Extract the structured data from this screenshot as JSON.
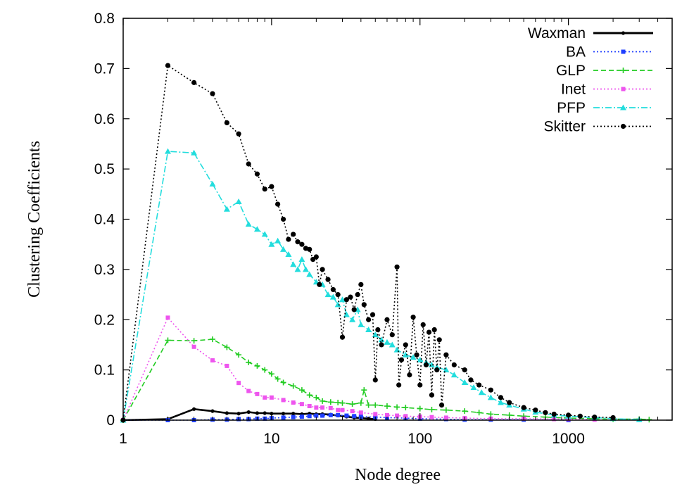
{
  "chart_data": {
    "type": "line",
    "xlabel": "Node degree",
    "ylabel": "Clustering Coefficients",
    "xscale": "log",
    "xlim": [
      1,
      5000
    ],
    "ylim": [
      0,
      0.8
    ],
    "x_ticks": [
      1,
      10,
      100,
      1000
    ],
    "x_tick_labels": [
      "1",
      "10",
      "100",
      "1000"
    ],
    "y_ticks": [
      0,
      0.1,
      0.2,
      0.3,
      0.4,
      0.5,
      0.6,
      0.7,
      0.8
    ],
    "y_tick_labels": [
      "0",
      "0.1",
      "0.2",
      "0.3",
      "0.4",
      "0.5",
      "0.6",
      "0.7",
      "0.8"
    ],
    "grid": false,
    "legend_position": "top-right",
    "series": [
      {
        "name": "Waxman",
        "color": "#000000",
        "dash": "solid",
        "marker": "dot",
        "points": [
          [
            1,
            0
          ],
          [
            2,
            0.002
          ],
          [
            3,
            0.022
          ],
          [
            4,
            0.018
          ],
          [
            5,
            0.014
          ],
          [
            6,
            0.013
          ],
          [
            7,
            0.016
          ],
          [
            8,
            0.014
          ],
          [
            9,
            0.014
          ],
          [
            10,
            0.013
          ],
          [
            12,
            0.013
          ],
          [
            14,
            0.013
          ],
          [
            16,
            0.012
          ],
          [
            18,
            0.013
          ],
          [
            20,
            0.012
          ],
          [
            22,
            0.012
          ],
          [
            25,
            0.011
          ],
          [
            28,
            0.009
          ],
          [
            32,
            0.007
          ],
          [
            36,
            0.005
          ],
          [
            40,
            0.004
          ],
          [
            45,
            0.003
          ],
          [
            50,
            0.002
          ]
        ]
      },
      {
        "name": "BA",
        "color": "#1f3fff",
        "dash": "dotted",
        "marker": "square",
        "points": [
          [
            1,
            0
          ],
          [
            2,
            0
          ],
          [
            3,
            0
          ],
          [
            4,
            0.001
          ],
          [
            5,
            0.001
          ],
          [
            6,
            0.002
          ],
          [
            7,
            0.002
          ],
          [
            8,
            0.003
          ],
          [
            9,
            0.003
          ],
          [
            10,
            0.004
          ],
          [
            12,
            0.005
          ],
          [
            14,
            0.006
          ],
          [
            16,
            0.007
          ],
          [
            18,
            0.008
          ],
          [
            20,
            0.009
          ],
          [
            22,
            0.009
          ],
          [
            25,
            0.01
          ],
          [
            28,
            0.01
          ],
          [
            32,
            0.009
          ],
          [
            36,
            0.008
          ],
          [
            40,
            0.007
          ],
          [
            50,
            0.006
          ],
          [
            60,
            0.005
          ],
          [
            80,
            0.004
          ],
          [
            100,
            0.003
          ],
          [
            150,
            0.002
          ],
          [
            200,
            0.001
          ],
          [
            300,
            0.001
          ],
          [
            500,
            0.001
          ],
          [
            1000,
            0.0
          ]
        ]
      },
      {
        "name": "GLP",
        "color": "#22cc22",
        "dash": "dashed",
        "marker": "plus",
        "points": [
          [
            1,
            0
          ],
          [
            2,
            0.159
          ],
          [
            3,
            0.158
          ],
          [
            4,
            0.161
          ],
          [
            5,
            0.145
          ],
          [
            6,
            0.13
          ],
          [
            7,
            0.115
          ],
          [
            8,
            0.108
          ],
          [
            9,
            0.1
          ],
          [
            10,
            0.092
          ],
          [
            11,
            0.082
          ],
          [
            12,
            0.075
          ],
          [
            14,
            0.068
          ],
          [
            16,
            0.06
          ],
          [
            18,
            0.05
          ],
          [
            20,
            0.045
          ],
          [
            22,
            0.038
          ],
          [
            25,
            0.036
          ],
          [
            28,
            0.035
          ],
          [
            30,
            0.034
          ],
          [
            35,
            0.032
          ],
          [
            40,
            0.034
          ],
          [
            42,
            0.06
          ],
          [
            45,
            0.03
          ],
          [
            50,
            0.03
          ],
          [
            60,
            0.028
          ],
          [
            70,
            0.026
          ],
          [
            80,
            0.025
          ],
          [
            100,
            0.023
          ],
          [
            120,
            0.021
          ],
          [
            150,
            0.02
          ],
          [
            200,
            0.018
          ],
          [
            250,
            0.015
          ],
          [
            300,
            0.012
          ],
          [
            400,
            0.01
          ],
          [
            500,
            0.008
          ],
          [
            700,
            0.006
          ],
          [
            1000,
            0.004
          ],
          [
            1500,
            0.003
          ],
          [
            2000,
            0.002
          ],
          [
            3000,
            0.002
          ],
          [
            3500,
            0.001
          ]
        ]
      },
      {
        "name": "Inet",
        "color": "#ee55ee",
        "dash": "dotted",
        "marker": "square",
        "points": [
          [
            1,
            0
          ],
          [
            2,
            0.204
          ],
          [
            3,
            0.146
          ],
          [
            4,
            0.119
          ],
          [
            5,
            0.108
          ],
          [
            6,
            0.074
          ],
          [
            7,
            0.058
          ],
          [
            8,
            0.052
          ],
          [
            9,
            0.045
          ],
          [
            10,
            0.045
          ],
          [
            12,
            0.04
          ],
          [
            14,
            0.035
          ],
          [
            16,
            0.032
          ],
          [
            18,
            0.028
          ],
          [
            20,
            0.025
          ],
          [
            22,
            0.025
          ],
          [
            25,
            0.024
          ],
          [
            28,
            0.02
          ],
          [
            30,
            0.02
          ],
          [
            35,
            0.018
          ],
          [
            40,
            0.015
          ],
          [
            50,
            0.012
          ],
          [
            60,
            0.01
          ],
          [
            70,
            0.009
          ],
          [
            80,
            0.008
          ],
          [
            100,
            0.007
          ],
          [
            120,
            0.006
          ],
          [
            150,
            0.005
          ],
          [
            200,
            0.004
          ],
          [
            300,
            0.003
          ],
          [
            500,
            0.003
          ],
          [
            800,
            0.002
          ],
          [
            1000,
            0.002
          ],
          [
            1500,
            0.001
          ]
        ]
      },
      {
        "name": "PFP",
        "color": "#22dddd",
        "dash": "dashdot",
        "marker": "triangle",
        "points": [
          [
            1,
            0
          ],
          [
            2,
            0.535
          ],
          [
            3,
            0.532
          ],
          [
            4,
            0.47
          ],
          [
            5,
            0.42
          ],
          [
            6,
            0.435
          ],
          [
            7,
            0.39
          ],
          [
            8,
            0.38
          ],
          [
            9,
            0.37
          ],
          [
            10,
            0.35
          ],
          [
            11,
            0.357
          ],
          [
            12,
            0.34
          ],
          [
            13,
            0.33
          ],
          [
            14,
            0.31
          ],
          [
            15,
            0.3
          ],
          [
            16,
            0.32
          ],
          [
            17,
            0.3
          ],
          [
            18,
            0.29
          ],
          [
            20,
            0.275
          ],
          [
            22,
            0.27
          ],
          [
            24,
            0.25
          ],
          [
            26,
            0.245
          ],
          [
            28,
            0.23
          ],
          [
            30,
            0.24
          ],
          [
            32,
            0.21
          ],
          [
            35,
            0.2
          ],
          [
            38,
            0.22
          ],
          [
            40,
            0.19
          ],
          [
            45,
            0.18
          ],
          [
            50,
            0.17
          ],
          [
            55,
            0.16
          ],
          [
            60,
            0.155
          ],
          [
            65,
            0.15
          ],
          [
            70,
            0.14
          ],
          [
            80,
            0.13
          ],
          [
            90,
            0.125
          ],
          [
            100,
            0.12
          ],
          [
            110,
            0.115
          ],
          [
            120,
            0.11
          ],
          [
            130,
            0.105
          ],
          [
            150,
            0.1
          ],
          [
            170,
            0.09
          ],
          [
            200,
            0.075
          ],
          [
            230,
            0.065
          ],
          [
            260,
            0.055
          ],
          [
            300,
            0.045
          ],
          [
            350,
            0.035
          ],
          [
            400,
            0.03
          ],
          [
            500,
            0.022
          ],
          [
            600,
            0.016
          ],
          [
            800,
            0.01
          ],
          [
            1000,
            0.008
          ],
          [
            1500,
            0.005
          ],
          [
            2000,
            0.003
          ],
          [
            3000,
            0.001
          ]
        ]
      },
      {
        "name": "Skitter",
        "color": "#000000",
        "dash": "dotted",
        "marker": "circle",
        "points": [
          [
            1,
            0
          ],
          [
            2,
            0.706
          ],
          [
            3,
            0.672
          ],
          [
            4,
            0.65
          ],
          [
            5,
            0.592
          ],
          [
            6,
            0.57
          ],
          [
            7,
            0.51
          ],
          [
            8,
            0.49
          ],
          [
            9,
            0.46
          ],
          [
            10,
            0.465
          ],
          [
            11,
            0.43
          ],
          [
            12,
            0.4
          ],
          [
            13,
            0.36
          ],
          [
            14,
            0.37
          ],
          [
            15,
            0.355
          ],
          [
            16,
            0.35
          ],
          [
            17,
            0.342
          ],
          [
            18,
            0.34
          ],
          [
            19,
            0.32
          ],
          [
            20,
            0.325
          ],
          [
            21,
            0.27
          ],
          [
            22,
            0.3
          ],
          [
            24,
            0.28
          ],
          [
            26,
            0.26
          ],
          [
            28,
            0.25
          ],
          [
            30,
            0.165
          ],
          [
            32,
            0.24
          ],
          [
            34,
            0.245
          ],
          [
            36,
            0.22
          ],
          [
            38,
            0.25
          ],
          [
            40,
            0.27
          ],
          [
            42,
            0.23
          ],
          [
            45,
            0.2
          ],
          [
            48,
            0.21
          ],
          [
            50,
            0.08
          ],
          [
            52,
            0.18
          ],
          [
            55,
            0.15
          ],
          [
            60,
            0.2
          ],
          [
            65,
            0.17
          ],
          [
            70,
            0.305
          ],
          [
            72,
            0.07
          ],
          [
            75,
            0.12
          ],
          [
            80,
            0.15
          ],
          [
            85,
            0.09
          ],
          [
            90,
            0.205
          ],
          [
            95,
            0.13
          ],
          [
            100,
            0.07
          ],
          [
            105,
            0.19
          ],
          [
            110,
            0.11
          ],
          [
            115,
            0.175
          ],
          [
            120,
            0.05
          ],
          [
            125,
            0.18
          ],
          [
            130,
            0.1
          ],
          [
            135,
            0.16
          ],
          [
            140,
            0.03
          ],
          [
            150,
            0.13
          ],
          [
            170,
            0.11
          ],
          [
            200,
            0.1
          ],
          [
            220,
            0.08
          ],
          [
            250,
            0.07
          ],
          [
            300,
            0.06
          ],
          [
            350,
            0.045
          ],
          [
            400,
            0.035
          ],
          [
            500,
            0.025
          ],
          [
            600,
            0.02
          ],
          [
            700,
            0.015
          ],
          [
            800,
            0.012
          ],
          [
            1000,
            0.01
          ],
          [
            1200,
            0.008
          ],
          [
            1500,
            0.006
          ],
          [
            2000,
            0.005
          ]
        ]
      }
    ]
  }
}
